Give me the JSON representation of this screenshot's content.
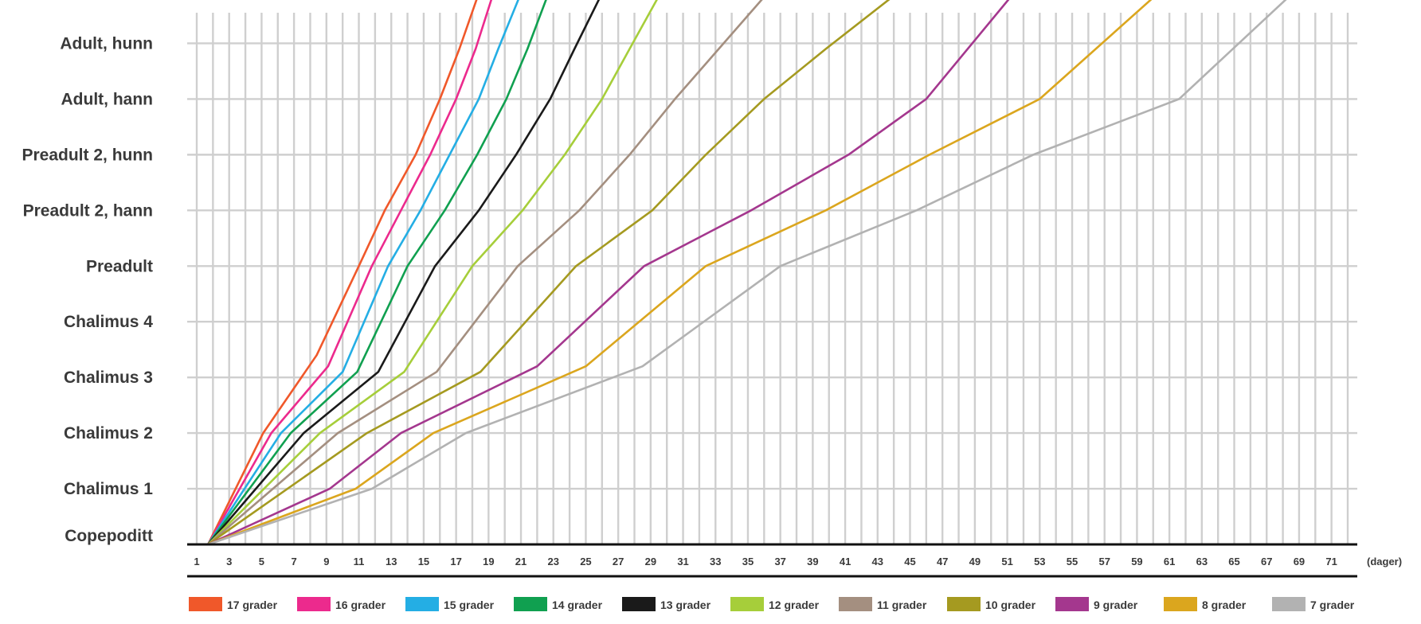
{
  "chart_data": {
    "type": "line",
    "title": "",
    "xlabel": "",
    "ylabel": "",
    "x_unit": "(dager)",
    "xlim": [
      1,
      72
    ],
    "x_tick_labels": [
      1,
      3,
      5,
      7,
      9,
      11,
      13,
      15,
      17,
      19,
      21,
      23,
      25,
      27,
      29,
      31,
      33,
      35,
      37,
      39,
      41,
      43,
      45,
      47,
      49,
      51,
      53,
      55,
      57,
      59,
      61,
      63,
      65,
      67,
      69,
      71
    ],
    "y_categories": [
      "Copepoditt",
      "Chalimus 1",
      "Chalimus 2",
      "Chalimus 3",
      "Chalimus 4",
      "Preadult",
      "Preadult 2, hann",
      "Preadult 2, hunn",
      "Adult, hann",
      "Adult, hunn"
    ],
    "grid": true,
    "legend_position": "bottom",
    "series": [
      {
        "name": "17 grader",
        "color": "#f0582a",
        "x": [
          1.7,
          5.1,
          8.4,
          11.0,
          12.6,
          14.5,
          16.0,
          17.2,
          18.4
        ],
        "y": [
          0,
          2,
          3.4,
          5,
          6,
          7,
          8,
          8.9,
          9.9
        ]
      },
      {
        "name": "16 grader",
        "color": "#ec2a8d",
        "x": [
          1.7,
          5.6,
          9.1,
          11.8,
          13.6,
          15.4,
          17.0,
          18.2,
          19.3
        ],
        "y": [
          0,
          2,
          3.2,
          5,
          6,
          7,
          8,
          8.9,
          9.9
        ]
      },
      {
        "name": "15 grader",
        "color": "#24aee4",
        "x": [
          1.7,
          6.2,
          10.0,
          12.8,
          14.8,
          16.6,
          18.4,
          19.6,
          21.0
        ],
        "y": [
          0,
          2,
          3.1,
          5,
          6,
          7,
          8,
          8.9,
          9.9
        ]
      },
      {
        "name": "14 grader",
        "color": "#10a050",
        "x": [
          1.7,
          6.8,
          10.9,
          14.0,
          16.3,
          18.3,
          20.1,
          21.4,
          22.7
        ],
        "y": [
          0,
          2,
          3.1,
          5,
          6,
          7,
          8,
          8.9,
          9.9
        ]
      },
      {
        "name": "13 grader",
        "color": "#1a1a1a",
        "x": [
          1.7,
          7.6,
          12.2,
          15.7,
          18.4,
          20.7,
          22.8,
          24.3,
          26.0
        ],
        "y": [
          0,
          2,
          3.1,
          5,
          6,
          7,
          8,
          8.9,
          9.9
        ]
      },
      {
        "name": "12 grader",
        "color": "#a6ce3a",
        "x": [
          1.7,
          8.6,
          13.8,
          18.0,
          21.1,
          23.7,
          26.0,
          27.7,
          29.6
        ],
        "y": [
          0,
          2,
          3.1,
          5,
          6,
          7,
          8,
          8.9,
          9.9
        ]
      },
      {
        "name": "11 grader",
        "color": "#a48f80",
        "x": [
          1.7,
          9.7,
          15.8,
          20.8,
          24.6,
          27.7,
          30.5,
          33.2,
          36.2
        ],
        "y": [
          0,
          2,
          3.1,
          5,
          6,
          7,
          8,
          8.9,
          9.9
        ]
      },
      {
        "name": "10 grader",
        "color": "#a59a20",
        "x": [
          1.7,
          11.5,
          18.5,
          24.4,
          29.1,
          32.4,
          36.0,
          39.8,
          44.2
        ],
        "y": [
          0,
          2,
          3.1,
          5,
          6,
          7,
          8,
          8.9,
          9.9
        ]
      },
      {
        "name": "9 grader",
        "color": "#a4378e",
        "x": [
          1.7,
          9.2,
          13.6,
          22.0,
          28.6,
          35.2,
          41.2,
          46.0,
          51.4
        ],
        "y": [
          0,
          1,
          2,
          3.2,
          5,
          6,
          7,
          8,
          9.9
        ]
      },
      {
        "name": "8 grader",
        "color": "#dba61e",
        "x": [
          1.7,
          10.8,
          15.6,
          25.0,
          32.4,
          39.8,
          46.2,
          53.0,
          60.3
        ],
        "y": [
          0,
          1,
          2,
          3.2,
          5,
          6,
          7,
          8,
          9.9
        ]
      },
      {
        "name": "7 grader",
        "color": "#b2b2b2",
        "x": [
          1.7,
          11.8,
          17.6,
          28.5,
          37.0,
          45.4,
          52.6,
          61.6,
          68.6
        ],
        "y": [
          0,
          1,
          2,
          3.2,
          5,
          6,
          7,
          8,
          9.9
        ]
      }
    ]
  }
}
